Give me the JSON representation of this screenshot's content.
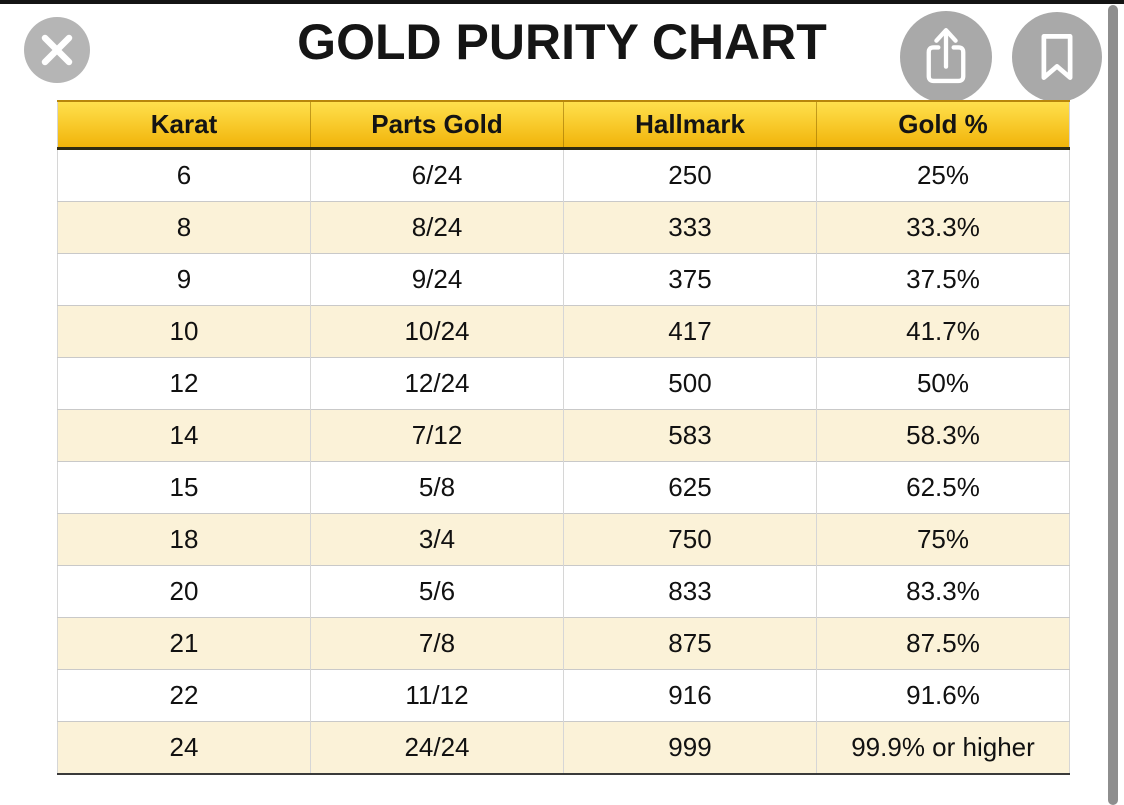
{
  "title": "GOLD PURITY CHART",
  "viewer": {
    "close_button": {
      "icon": "x-cross",
      "glyph": "✕"
    },
    "share_button": {
      "icon": "share-box-up-arrow"
    },
    "bookmark_button": {
      "icon": "bookmark-outline"
    },
    "scrollbar": {
      "side": "right",
      "extent": "full-height"
    }
  },
  "chart_data": {
    "type": "table",
    "title": "GOLD PURITY CHART",
    "columns": [
      "Karat",
      "Parts Gold",
      "Hallmark",
      "Gold %"
    ],
    "rows": [
      [
        "6",
        "6/24",
        "250",
        "25%"
      ],
      [
        "8",
        "8/24",
        "333",
        "33.3%"
      ],
      [
        "9",
        "9/24",
        "375",
        "37.5%"
      ],
      [
        "10",
        "10/24",
        "417",
        "41.7%"
      ],
      [
        "12",
        "12/24",
        "500",
        "50%"
      ],
      [
        "14",
        "7/12",
        "583",
        "58.3%"
      ],
      [
        "15",
        "5/8",
        "625",
        "62.5%"
      ],
      [
        "18",
        "3/4",
        "750",
        "75%"
      ],
      [
        "20",
        "5/6",
        "833",
        "83.3%"
      ],
      [
        "21",
        "7/8",
        "875",
        "87.5%"
      ],
      [
        "22",
        "11/12",
        "916",
        "91.6%"
      ],
      [
        "24",
        "24/24",
        "999",
        "99.9% or higher"
      ]
    ]
  },
  "colors": {
    "header_gradient_top": "#ffe04d",
    "header_gradient_bottom": "#f1b40a",
    "header_top_border": "#b8860b",
    "header_bottom_border": "#2f2a12",
    "row_stripe": "#fbf2d8",
    "row_border": "#c9c9c9",
    "column_border": "#d6d6d6",
    "table_bottom_border": "#3a3a3a",
    "text": "#111111",
    "close_button_bg": "#b5b5b5",
    "action_button_bg": "#a9a9a9",
    "icon_color": "#ffffff",
    "scrollbar": "#8e8e8e",
    "top_strip": "#141414"
  }
}
